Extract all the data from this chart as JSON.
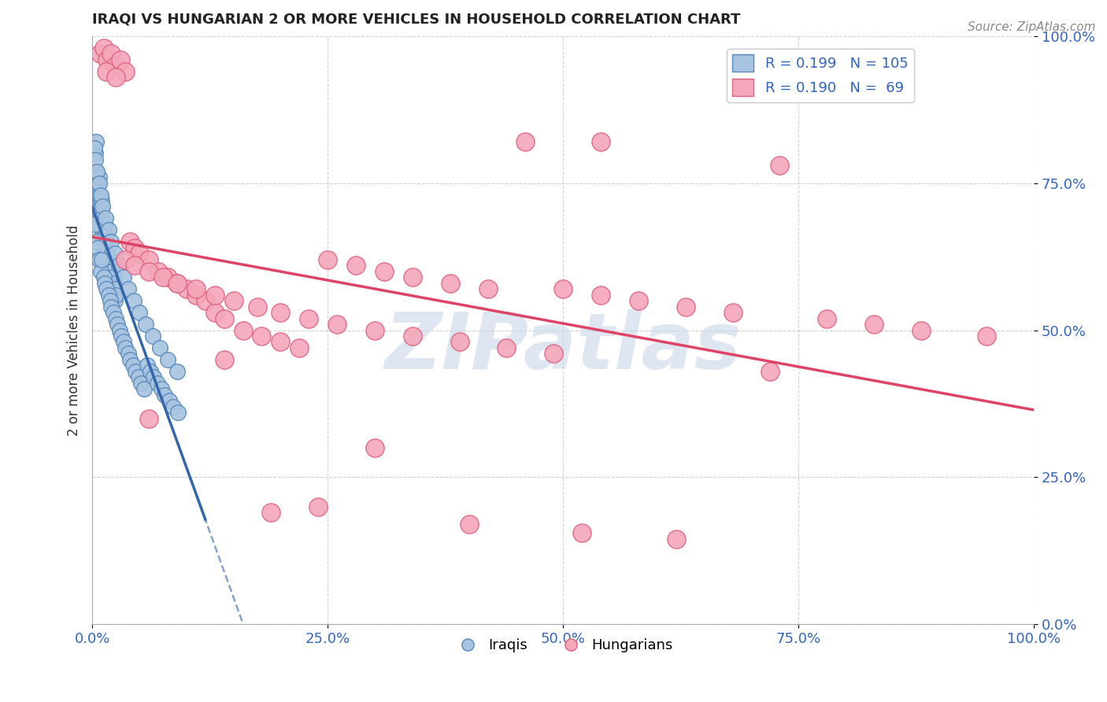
{
  "title": "IRAQI VS HUNGARIAN 2 OR MORE VEHICLES IN HOUSEHOLD CORRELATION CHART",
  "source_text": "Source: ZipAtlas.com",
  "ylabel": "2 or more Vehicles in Household",
  "xlim": [
    0,
    1.0
  ],
  "ylim": [
    0,
    1.0
  ],
  "xticks": [
    0.0,
    0.25,
    0.5,
    0.75,
    1.0
  ],
  "yticks": [
    0.0,
    0.25,
    0.5,
    0.75,
    1.0
  ],
  "xticklabels": [
    "0.0%",
    "25.0%",
    "50.0%",
    "75.0%",
    "100.0%"
  ],
  "yticklabels": [
    "0.0%",
    "25.0%",
    "50.0%",
    "75.0%",
    "100.0%"
  ],
  "iraqi_color": "#a8c4e0",
  "hungarian_color": "#f4a7b9",
  "iraqi_edge_color": "#5588bb",
  "hungarian_edge_color": "#e06080",
  "iraqi_R": 0.199,
  "iraqi_N": 105,
  "hungarian_R": 0.19,
  "hungarian_N": 69,
  "trend_line_iraqi_color": "#3366aa",
  "trend_line_hungarian_color": "#dd4466",
  "watermark": "ZIPatlas",
  "watermark_color": "#c8d8e8",
  "iraqi_x": [
    0.002,
    0.003,
    0.003,
    0.004,
    0.004,
    0.005,
    0.005,
    0.005,
    0.006,
    0.006,
    0.007,
    0.007,
    0.007,
    0.008,
    0.008,
    0.008,
    0.009,
    0.009,
    0.01,
    0.01,
    0.01,
    0.011,
    0.011,
    0.012,
    0.012,
    0.013,
    0.013,
    0.014,
    0.014,
    0.015,
    0.015,
    0.016,
    0.016,
    0.017,
    0.017,
    0.018,
    0.018,
    0.019,
    0.019,
    0.02,
    0.02,
    0.021,
    0.021,
    0.022,
    0.022,
    0.023,
    0.023,
    0.024,
    0.024,
    0.025,
    0.003,
    0.004,
    0.006,
    0.007,
    0.009,
    0.01,
    0.012,
    0.013,
    0.015,
    0.017,
    0.019,
    0.02,
    0.022,
    0.025,
    0.027,
    0.029,
    0.031,
    0.033,
    0.035,
    0.038,
    0.04,
    0.043,
    0.046,
    0.049,
    0.052,
    0.055,
    0.058,
    0.062,
    0.065,
    0.069,
    0.073,
    0.077,
    0.082,
    0.086,
    0.091,
    0.002,
    0.003,
    0.005,
    0.007,
    0.009,
    0.011,
    0.014,
    0.017,
    0.02,
    0.024,
    0.028,
    0.033,
    0.038,
    0.044,
    0.05,
    0.057,
    0.064,
    0.072,
    0.08,
    0.09
  ],
  "iraqi_y": [
    0.75,
    0.76,
    0.8,
    0.77,
    0.82,
    0.74,
    0.76,
    0.71,
    0.75,
    0.72,
    0.73,
    0.76,
    0.68,
    0.7,
    0.72,
    0.68,
    0.71,
    0.69,
    0.7,
    0.66,
    0.72,
    0.69,
    0.65,
    0.67,
    0.64,
    0.68,
    0.63,
    0.66,
    0.62,
    0.65,
    0.64,
    0.63,
    0.61,
    0.62,
    0.6,
    0.61,
    0.59,
    0.6,
    0.58,
    0.59,
    0.61,
    0.58,
    0.6,
    0.57,
    0.59,
    0.56,
    0.58,
    0.57,
    0.55,
    0.56,
    0.68,
    0.65,
    0.64,
    0.62,
    0.6,
    0.62,
    0.59,
    0.58,
    0.57,
    0.56,
    0.55,
    0.54,
    0.53,
    0.52,
    0.51,
    0.5,
    0.49,
    0.48,
    0.47,
    0.46,
    0.45,
    0.44,
    0.43,
    0.42,
    0.41,
    0.4,
    0.44,
    0.43,
    0.42,
    0.41,
    0.4,
    0.39,
    0.38,
    0.37,
    0.36,
    0.81,
    0.79,
    0.77,
    0.75,
    0.73,
    0.71,
    0.69,
    0.67,
    0.65,
    0.63,
    0.61,
    0.59,
    0.57,
    0.55,
    0.53,
    0.51,
    0.49,
    0.47,
    0.45,
    0.43
  ],
  "hungarian_x": [
    0.008,
    0.012,
    0.016,
    0.02,
    0.025,
    0.03,
    0.035,
    0.04,
    0.045,
    0.05,
    0.06,
    0.07,
    0.08,
    0.09,
    0.1,
    0.11,
    0.12,
    0.13,
    0.14,
    0.16,
    0.18,
    0.2,
    0.22,
    0.25,
    0.28,
    0.31,
    0.34,
    0.38,
    0.42,
    0.46,
    0.5,
    0.54,
    0.58,
    0.63,
    0.68,
    0.73,
    0.78,
    0.83,
    0.88,
    0.95,
    0.015,
    0.025,
    0.035,
    0.045,
    0.06,
    0.075,
    0.09,
    0.11,
    0.13,
    0.15,
    0.175,
    0.2,
    0.23,
    0.26,
    0.3,
    0.34,
    0.39,
    0.44,
    0.49,
    0.54,
    0.06,
    0.14,
    0.19,
    0.24,
    0.3,
    0.4,
    0.52,
    0.62,
    0.72
  ],
  "hungarian_y": [
    0.97,
    0.98,
    0.96,
    0.97,
    0.95,
    0.96,
    0.94,
    0.65,
    0.64,
    0.63,
    0.62,
    0.6,
    0.59,
    0.58,
    0.57,
    0.56,
    0.55,
    0.53,
    0.52,
    0.5,
    0.49,
    0.48,
    0.47,
    0.62,
    0.61,
    0.6,
    0.59,
    0.58,
    0.57,
    0.82,
    0.57,
    0.56,
    0.55,
    0.54,
    0.53,
    0.78,
    0.52,
    0.51,
    0.5,
    0.49,
    0.94,
    0.93,
    0.62,
    0.61,
    0.6,
    0.59,
    0.58,
    0.57,
    0.56,
    0.55,
    0.54,
    0.53,
    0.52,
    0.51,
    0.5,
    0.49,
    0.48,
    0.47,
    0.46,
    0.82,
    0.35,
    0.45,
    0.19,
    0.2,
    0.3,
    0.17,
    0.155,
    0.145,
    0.43
  ]
}
